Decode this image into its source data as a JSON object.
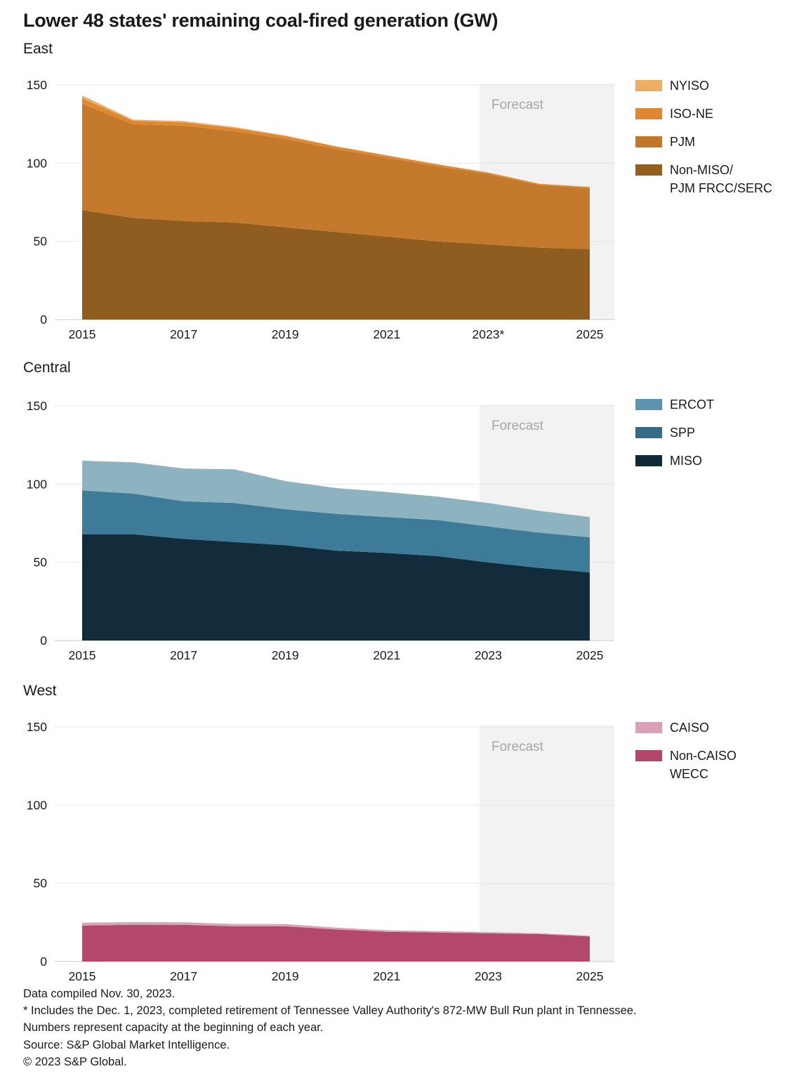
{
  "title": "Lower 48 states' remaining coal-fired generation (GW)",
  "forecast_label": "Forecast",
  "colors": {
    "text": "#1a1a1a",
    "grid": "#e7e7e7",
    "zero_line": "#c9c9c9",
    "forecast_band": "#f2f2f2",
    "forecast_text": "#a6a6a6"
  },
  "footer": {
    "lines": [
      "Data compiled Nov. 30, 2023.",
      "* Includes the Dec. 1, 2023, completed retirement of Tennessee Valley Authority's 872-MW Bull Run plant in Tennessee.",
      "Numbers represent capacity at the beginning of each year.",
      "Source: S&P Global Market Intelligence.",
      "© 2023 S&P Global."
    ]
  },
  "chart_data": [
    {
      "type": "area",
      "region": "East",
      "stacked": true,
      "title": "East",
      "xlabel": "",
      "ylabel": "GW",
      "ylim": [
        0,
        150
      ],
      "y_ticks": [
        0,
        50,
        100,
        150
      ],
      "grid": true,
      "legend_position": "right",
      "forecast_start_year": 2022.83,
      "x": [
        2015,
        2016,
        2017,
        2018,
        2019,
        2020,
        2021,
        2022,
        2023,
        2024,
        2025
      ],
      "x_ticks": [
        {
          "year": 2015,
          "label": "2015"
        },
        {
          "year": 2017,
          "label": "2017"
        },
        {
          "year": 2019,
          "label": "2019"
        },
        {
          "year": 2021,
          "label": "2021"
        },
        {
          "year": 2023,
          "label": "2023*"
        },
        {
          "year": 2025,
          "label": "2025"
        }
      ],
      "series": [
        {
          "name": "Non-MISO/PJM FRCC/SERC",
          "color": "#8F5D1F",
          "legend_color": "#935F1D",
          "values": [
            70,
            65,
            63,
            62,
            59,
            56,
            53,
            50,
            48,
            46,
            45
          ]
        },
        {
          "name": "PJM",
          "color": "#C47A2D",
          "legend_color": "#C0762B",
          "values": [
            68,
            60,
            61,
            58.5,
            56.5,
            53,
            50.5,
            48,
            45,
            40,
            39
          ]
        },
        {
          "name": "ISO-NE",
          "color": "#E1882F",
          "legend_color": "#E0862E",
          "values": [
            3.5,
            2.1,
            2.1,
            2,
            1.8,
            1.6,
            1.4,
            1.2,
            1,
            0.8,
            0.8
          ]
        },
        {
          "name": "NYISO",
          "color": "#ECAF63",
          "legend_color": "#ECAE62",
          "values": [
            1.8,
            0.8,
            0.8,
            0.6,
            0.4,
            0.3,
            0.2,
            0.15,
            0.1,
            0.1,
            0.1
          ]
        }
      ],
      "legend": [
        {
          "label_lines": [
            "NYISO"
          ],
          "color": "#ECAE62"
        },
        {
          "label_lines": [
            "ISO-NE"
          ],
          "color": "#E0862E"
        },
        {
          "label_lines": [
            "PJM"
          ],
          "color": "#C0762B"
        },
        {
          "label_lines": [
            "Non-MISO/",
            "PJM FRCC/SERC"
          ],
          "color": "#935F1D"
        }
      ]
    },
    {
      "type": "area",
      "region": "Central",
      "stacked": true,
      "title": "Central",
      "xlabel": "",
      "ylabel": "GW",
      "ylim": [
        0,
        150
      ],
      "y_ticks": [
        0,
        50,
        100,
        150
      ],
      "grid": true,
      "legend_position": "right",
      "forecast_start_year": 2022.83,
      "x": [
        2015,
        2016,
        2017,
        2018,
        2019,
        2020,
        2021,
        2022,
        2023,
        2024,
        2025
      ],
      "x_ticks": [
        {
          "year": 2015,
          "label": "2015"
        },
        {
          "year": 2017,
          "label": "2017"
        },
        {
          "year": 2019,
          "label": "2019"
        },
        {
          "year": 2021,
          "label": "2021"
        },
        {
          "year": 2023,
          "label": "2023"
        },
        {
          "year": 2025,
          "label": "2025"
        }
      ],
      "series": [
        {
          "name": "MISO",
          "color": "#132C3C",
          "legend_color": "#0F2937",
          "values": [
            68,
            68,
            65,
            63,
            61,
            57.5,
            56,
            54,
            50,
            46.5,
            43.5
          ]
        },
        {
          "name": "SPP",
          "color": "#3E7B98",
          "legend_color": "#336B89",
          "values": [
            28,
            26,
            24,
            25,
            23,
            23.5,
            23,
            23,
            23,
            22.5,
            22.5
          ]
        },
        {
          "name": "ERCOT",
          "color": "#8DB3C1",
          "legend_color": "#5C94AD",
          "values": [
            19,
            20,
            21,
            21.5,
            18,
            16.5,
            16,
            15,
            15,
            14,
            13
          ]
        }
      ],
      "legend": [
        {
          "label_lines": [
            "ERCOT"
          ],
          "color": "#5C94AD"
        },
        {
          "label_lines": [
            "SPP"
          ],
          "color": "#336B89"
        },
        {
          "label_lines": [
            "MISO"
          ],
          "color": "#0F2937"
        }
      ]
    },
    {
      "type": "area",
      "region": "West",
      "stacked": true,
      "title": "West",
      "xlabel": "",
      "ylabel": "GW",
      "ylim": [
        0,
        150
      ],
      "y_ticks": [
        0,
        50,
        100,
        150
      ],
      "grid": true,
      "legend_position": "right",
      "forecast_start_year": 2022.83,
      "x": [
        2015,
        2016,
        2017,
        2018,
        2019,
        2020,
        2021,
        2022,
        2023,
        2024,
        2025
      ],
      "x_ticks": [
        {
          "year": 2015,
          "label": "2015"
        },
        {
          "year": 2017,
          "label": "2017"
        },
        {
          "year": 2019,
          "label": "2019"
        },
        {
          "year": 2021,
          "label": "2021"
        },
        {
          "year": 2023,
          "label": "2023"
        },
        {
          "year": 2025,
          "label": "2025"
        }
      ],
      "series": [
        {
          "name": "Non-CAISO WECC",
          "color": "#B3486C",
          "legend_color": "#B2476B",
          "values": [
            23,
            23.5,
            23.5,
            22.5,
            22.5,
            20.5,
            19,
            18.5,
            18,
            17.5,
            16
          ]
        },
        {
          "name": "CAISO",
          "color": "#D8A3B9",
          "legend_color": "#D7A0B7",
          "values": [
            1.8,
            1.7,
            1.6,
            1.5,
            1.5,
            1.2,
            1,
            0.9,
            0.8,
            0.6,
            0.5
          ]
        }
      ],
      "legend": [
        {
          "label_lines": [
            "CAISO"
          ],
          "color": "#D7A0B7"
        },
        {
          "label_lines": [
            "Non-CAISO",
            "WECC"
          ],
          "color": "#B2476B"
        }
      ]
    }
  ]
}
